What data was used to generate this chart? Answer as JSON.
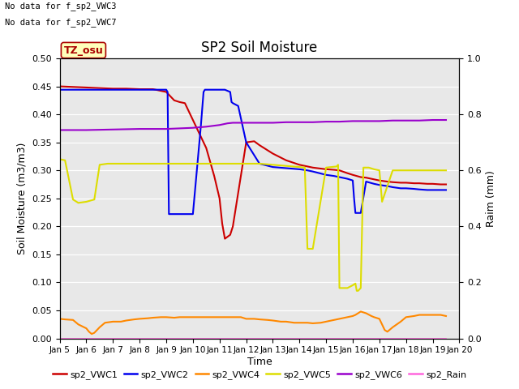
{
  "title": "SP2 Soil Moisture",
  "ylabel_left": "Soil Moisture (m3/m3)",
  "ylabel_right": "Raim (mm)",
  "xlabel": "Time",
  "note1": "No data for f_sp2_VWC3",
  "note2": "No data for f_sp2_VWC7",
  "tz_label": "TZ_osu",
  "ylim_left": [
    0.0,
    0.5
  ],
  "ylim_right": [
    0.0,
    1.0
  ],
  "yticks_left": [
    0.0,
    0.05,
    0.1,
    0.15,
    0.2,
    0.25,
    0.3,
    0.35,
    0.4,
    0.45,
    0.5
  ],
  "yticks_right": [
    0.0,
    0.2,
    0.4,
    0.6,
    0.8,
    1.0
  ],
  "background_color": "#e8e8e8",
  "fig_background": "#ffffff",
  "grid_color": "#ffffff",
  "series": {
    "sp2_VWC1": {
      "color": "#cc0000",
      "label": "sp2_VWC1",
      "x": [
        5.0,
        5.5,
        6.0,
        6.5,
        7.0,
        7.5,
        8.0,
        8.5,
        9.0,
        9.1,
        9.3,
        9.5,
        9.7,
        10.0,
        10.3,
        10.5,
        10.8,
        11.0,
        11.1,
        11.2,
        11.4,
        11.5,
        11.7,
        12.0,
        12.3,
        12.5,
        13.0,
        13.5,
        14.0,
        14.3,
        14.5,
        15.0,
        15.3,
        15.5,
        15.8,
        16.0,
        16.3,
        16.5,
        16.8,
        17.0,
        17.3,
        17.5,
        17.8,
        18.0,
        18.3,
        18.5,
        18.8,
        19.0,
        19.3,
        19.5
      ],
      "y": [
        0.45,
        0.449,
        0.448,
        0.447,
        0.446,
        0.446,
        0.445,
        0.445,
        0.44,
        0.435,
        0.425,
        0.422,
        0.42,
        0.39,
        0.36,
        0.34,
        0.29,
        0.25,
        0.205,
        0.178,
        0.185,
        0.2,
        0.26,
        0.35,
        0.352,
        0.345,
        0.33,
        0.318,
        0.31,
        0.307,
        0.305,
        0.302,
        0.301,
        0.3,
        0.295,
        0.292,
        0.288,
        0.287,
        0.284,
        0.282,
        0.28,
        0.279,
        0.278,
        0.278,
        0.277,
        0.277,
        0.276,
        0.276,
        0.275,
        0.275
      ]
    },
    "sp2_VWC2": {
      "color": "#0000ee",
      "label": "sp2_VWC2",
      "x": [
        5.0,
        5.5,
        6.0,
        6.5,
        7.0,
        7.5,
        8.0,
        8.5,
        8.9,
        9.0,
        9.05,
        9.1,
        9.4,
        9.5,
        9.6,
        10.0,
        10.3,
        10.4,
        10.45,
        10.5,
        10.6,
        11.0,
        11.2,
        11.4,
        11.45,
        11.5,
        11.7,
        12.0,
        12.5,
        13.0,
        13.5,
        14.0,
        14.3,
        14.5,
        15.0,
        15.3,
        15.5,
        15.8,
        16.0,
        16.05,
        16.1,
        16.3,
        16.5,
        16.8,
        17.0,
        17.3,
        17.5,
        17.8,
        18.0,
        18.3,
        18.5,
        18.8,
        19.0,
        19.3,
        19.5
      ],
      "y": [
        0.444,
        0.444,
        0.444,
        0.444,
        0.444,
        0.444,
        0.444,
        0.444,
        0.444,
        0.444,
        0.44,
        0.222,
        0.222,
        0.222,
        0.222,
        0.222,
        0.38,
        0.44,
        0.444,
        0.444,
        0.444,
        0.444,
        0.444,
        0.44,
        0.422,
        0.42,
        0.415,
        0.35,
        0.312,
        0.306,
        0.304,
        0.302,
        0.3,
        0.298,
        0.292,
        0.29,
        0.288,
        0.285,
        0.282,
        0.25,
        0.224,
        0.224,
        0.28,
        0.276,
        0.274,
        0.272,
        0.27,
        0.268,
        0.268,
        0.267,
        0.266,
        0.265,
        0.265,
        0.265,
        0.265
      ]
    },
    "sp2_VWC4": {
      "color": "#ff8800",
      "label": "sp2_VWC4",
      "x": [
        5.0,
        5.2,
        5.5,
        5.7,
        6.0,
        6.1,
        6.2,
        6.3,
        6.5,
        6.7,
        7.0,
        7.3,
        7.5,
        7.8,
        8.0,
        8.3,
        8.5,
        8.8,
        9.0,
        9.3,
        9.5,
        9.8,
        10.0,
        10.3,
        10.5,
        10.8,
        11.0,
        11.3,
        11.5,
        11.8,
        12.0,
        12.3,
        12.5,
        12.8,
        13.0,
        13.3,
        13.5,
        13.8,
        14.0,
        14.3,
        14.5,
        14.8,
        15.0,
        15.2,
        15.3,
        15.5,
        15.8,
        16.0,
        16.1,
        16.2,
        16.3,
        16.5,
        16.7,
        16.8,
        17.0,
        17.1,
        17.2,
        17.3,
        17.5,
        17.8,
        18.0,
        18.3,
        18.5,
        18.8,
        19.0,
        19.3,
        19.5
      ],
      "y": [
        0.035,
        0.034,
        0.033,
        0.025,
        0.018,
        0.012,
        0.008,
        0.01,
        0.02,
        0.028,
        0.03,
        0.03,
        0.032,
        0.034,
        0.035,
        0.036,
        0.037,
        0.038,
        0.038,
        0.037,
        0.038,
        0.038,
        0.038,
        0.038,
        0.038,
        0.038,
        0.038,
        0.038,
        0.038,
        0.038,
        0.035,
        0.035,
        0.034,
        0.033,
        0.032,
        0.03,
        0.03,
        0.028,
        0.028,
        0.028,
        0.027,
        0.028,
        0.03,
        0.032,
        0.033,
        0.035,
        0.038,
        0.04,
        0.042,
        0.045,
        0.048,
        0.045,
        0.04,
        0.038,
        0.035,
        0.025,
        0.015,
        0.012,
        0.02,
        0.03,
        0.038,
        0.04,
        0.042,
        0.042,
        0.042,
        0.042,
        0.04
      ]
    },
    "sp2_VWC5": {
      "color": "#dddd00",
      "label": "sp2_VWC5",
      "x": [
        5.0,
        5.2,
        5.3,
        5.5,
        5.7,
        6.0,
        6.3,
        6.5,
        6.8,
        7.0,
        7.5,
        8.0,
        8.5,
        9.0,
        9.5,
        10.0,
        10.5,
        11.0,
        11.5,
        12.0,
        12.5,
        13.0,
        13.5,
        14.0,
        14.2,
        14.3,
        14.5,
        15.0,
        15.4,
        15.45,
        15.5,
        15.6,
        15.8,
        16.0,
        16.1,
        16.15,
        16.2,
        16.3,
        16.4,
        16.45,
        16.5,
        16.6,
        16.8,
        17.0,
        17.1,
        17.5,
        18.0,
        18.5,
        19.0,
        19.5
      ],
      "y": [
        0.32,
        0.318,
        0.295,
        0.248,
        0.242,
        0.244,
        0.248,
        0.31,
        0.312,
        0.312,
        0.312,
        0.312,
        0.312,
        0.312,
        0.312,
        0.312,
        0.312,
        0.312,
        0.312,
        0.312,
        0.312,
        0.31,
        0.308,
        0.306,
        0.305,
        0.16,
        0.16,
        0.305,
        0.307,
        0.31,
        0.09,
        0.09,
        0.09,
        0.095,
        0.098,
        0.085,
        0.085,
        0.09,
        0.305,
        0.305,
        0.305,
        0.305,
        0.302,
        0.3,
        0.244,
        0.3,
        0.3,
        0.3,
        0.3,
        0.3
      ]
    },
    "sp2_VWC6": {
      "color": "#9900cc",
      "label": "sp2_VWC6",
      "x": [
        5.0,
        6.0,
        7.0,
        8.0,
        9.0,
        9.5,
        10.0,
        10.5,
        11.0,
        11.1,
        11.3,
        11.5,
        12.0,
        12.5,
        13.0,
        13.5,
        14.0,
        14.5,
        15.0,
        15.5,
        16.0,
        16.5,
        17.0,
        17.5,
        18.0,
        18.5,
        19.0,
        19.5
      ],
      "y": [
        0.372,
        0.372,
        0.373,
        0.374,
        0.374,
        0.375,
        0.376,
        0.378,
        0.381,
        0.382,
        0.384,
        0.385,
        0.385,
        0.385,
        0.385,
        0.386,
        0.386,
        0.386,
        0.387,
        0.387,
        0.388,
        0.388,
        0.388,
        0.389,
        0.389,
        0.389,
        0.39,
        0.39
      ]
    },
    "sp2_Rain": {
      "color": "#ff66dd",
      "label": "sp2_Rain",
      "x": [
        5.0,
        19.5
      ],
      "y": [
        0.0,
        0.0
      ]
    }
  },
  "xtick_labels": [
    "Jan 5",
    "Jan 6",
    "Jan 7",
    "Jan 8",
    "Jan 9",
    "Jan 10",
    "Jan 11",
    "Jan 12",
    "Jan 13",
    "Jan 14",
    "Jan 15",
    "Jan 16",
    "Jan 17",
    "Jan 18",
    "Jan 19",
    "Jan 20"
  ],
  "xtick_positions": [
    5,
    6,
    7,
    8,
    9,
    10,
    11,
    12,
    13,
    14,
    15,
    16,
    17,
    18,
    19,
    20
  ]
}
